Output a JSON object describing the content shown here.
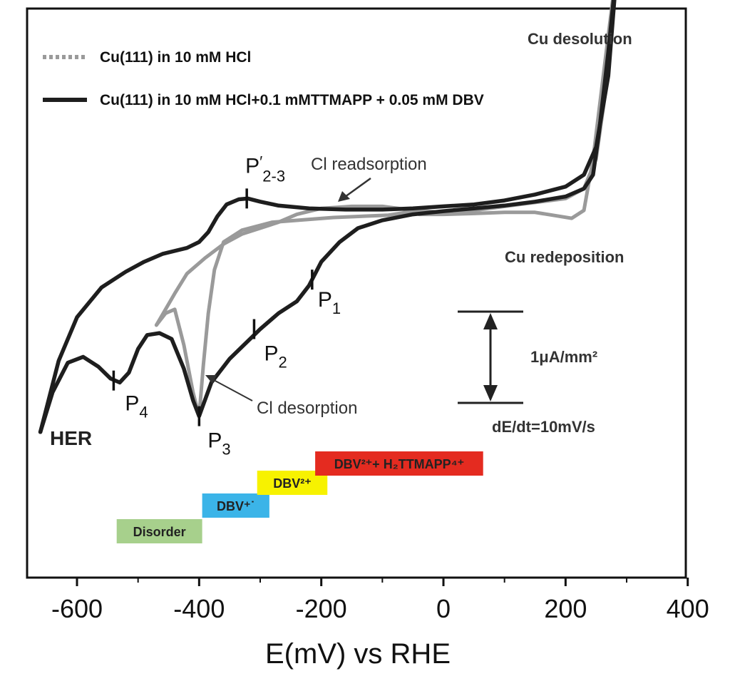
{
  "chart_data": {
    "type": "line",
    "title": "",
    "xlabel": "E(mV) vs RHE",
    "ylabel": "",
    "xlim": [
      -700,
      400
    ],
    "xticks": [
      "-600",
      "-400",
      "-200",
      "0",
      "200",
      "400"
    ],
    "xtick_values": [
      -600,
      -400,
      -200,
      0,
      200,
      400
    ],
    "grid": false,
    "legend_position": "top-left",
    "series": [
      {
        "name": "Cu(111) in 10 mM HCl",
        "style": "dotted",
        "color": "#9a9a9a",
        "anodic": [
          [
            -470,
            -2.9
          ],
          [
            -440,
            -2.1
          ],
          [
            -420,
            -1.6
          ],
          [
            -390,
            -1.2
          ],
          [
            -360,
            -0.85
          ],
          [
            -330,
            -0.6
          ],
          [
            -300,
            -0.45
          ],
          [
            -270,
            -0.3
          ],
          [
            -240,
            -0.1
          ],
          [
            -200,
            0.05
          ],
          [
            -150,
            0.1
          ],
          [
            -100,
            0.1
          ],
          [
            -50,
            0.0
          ],
          [
            0,
            -0.05
          ],
          [
            50,
            0.0
          ],
          [
            100,
            0.1
          ],
          [
            150,
            0.2
          ],
          [
            200,
            0.3
          ],
          [
            230,
            0.55
          ],
          [
            250,
            1.3
          ],
          [
            270,
            3.5
          ],
          [
            285,
            6.3
          ]
        ],
        "cathodic": [
          [
            285,
            6.3
          ],
          [
            265,
            3.8
          ],
          [
            245,
            1.3
          ],
          [
            230,
            0.0
          ],
          [
            210,
            -0.2
          ],
          [
            190,
            -0.15
          ],
          [
            150,
            -0.05
          ],
          [
            100,
            -0.05
          ],
          [
            50,
            -0.08
          ],
          [
            0,
            -0.1
          ],
          [
            -40,
            -0.1
          ],
          [
            -40,
            0.0
          ],
          [
            -90,
            -0.12
          ],
          [
            -180,
            -0.18
          ],
          [
            -280,
            -0.3
          ],
          [
            -330,
            -0.5
          ],
          [
            -360,
            -0.8
          ],
          [
            -375,
            -1.5
          ],
          [
            -385,
            -2.6
          ],
          [
            -393,
            -3.9
          ],
          [
            -400,
            -5.2
          ],
          [
            -410,
            -4.6
          ],
          [
            -425,
            -3.4
          ],
          [
            -440,
            -2.5
          ],
          [
            -455,
            -2.6
          ],
          [
            -470,
            -2.9
          ]
        ]
      },
      {
        "name": "Cu(111) in 10 mM HCl+0.1 mMTTMAPP + 0.05 mM DBV",
        "style": "solid",
        "color": "#1e1e1e",
        "anodic": [
          [
            -660,
            -5.6
          ],
          [
            -630,
            -3.8
          ],
          [
            -600,
            -2.7
          ],
          [
            -560,
            -1.95
          ],
          [
            -520,
            -1.55
          ],
          [
            -490,
            -1.3
          ],
          [
            -460,
            -1.1
          ],
          [
            -420,
            -0.95
          ],
          [
            -400,
            -0.8
          ],
          [
            -385,
            -0.55
          ],
          [
            -370,
            -0.15
          ],
          [
            -355,
            0.15
          ],
          [
            -335,
            0.28
          ],
          [
            -320,
            0.3
          ],
          [
            -300,
            0.22
          ],
          [
            -270,
            0.12
          ],
          [
            -220,
            0.05
          ],
          [
            -160,
            0.02
          ],
          [
            -100,
            0.02
          ],
          [
            -50,
            0.05
          ],
          [
            0,
            0.1
          ],
          [
            50,
            0.15
          ],
          [
            100,
            0.25
          ],
          [
            150,
            0.4
          ],
          [
            200,
            0.6
          ],
          [
            230,
            0.9
          ],
          [
            250,
            1.6
          ],
          [
            270,
            3.4
          ],
          [
            285,
            6.3
          ]
        ],
        "cathodic": [
          [
            285,
            6.3
          ],
          [
            270,
            4.0
          ],
          [
            255,
            2.0
          ],
          [
            245,
            0.9
          ],
          [
            230,
            0.55
          ],
          [
            200,
            0.35
          ],
          [
            150,
            0.22
          ],
          [
            100,
            0.12
          ],
          [
            50,
            0.05
          ],
          [
            0,
            -0.02
          ],
          [
            -50,
            -0.1
          ],
          [
            -100,
            -0.25
          ],
          [
            -140,
            -0.45
          ],
          [
            -170,
            -0.8
          ],
          [
            -200,
            -1.3
          ],
          [
            -220,
            -1.9
          ],
          [
            -240,
            -2.3
          ],
          [
            -270,
            -2.6
          ],
          [
            -300,
            -3.0
          ],
          [
            -320,
            -3.3
          ],
          [
            -350,
            -3.75
          ],
          [
            -380,
            -4.35
          ],
          [
            -400,
            -5.2
          ],
          [
            -410,
            -4.8
          ],
          [
            -425,
            -4.0
          ],
          [
            -445,
            -3.25
          ],
          [
            -465,
            -3.1
          ],
          [
            -485,
            -3.15
          ],
          [
            -500,
            -3.5
          ],
          [
            -515,
            -4.1
          ],
          [
            -530,
            -4.35
          ],
          [
            -545,
            -4.25
          ],
          [
            -565,
            -3.95
          ],
          [
            -590,
            -3.7
          ],
          [
            -615,
            -3.85
          ],
          [
            -640,
            -4.6
          ],
          [
            -660,
            -5.6
          ]
        ]
      }
    ],
    "peak_labels": [
      {
        "id": "P1",
        "main": "P",
        "sub": "1",
        "x": -215,
        "y": -1.75
      },
      {
        "id": "P2",
        "main": "P",
        "sub": "2",
        "x": -310,
        "y": -3.0
      },
      {
        "id": "P3",
        "main": "P",
        "sub": "3",
        "x": -400,
        "y": -5.2
      },
      {
        "id": "P4",
        "main": "P",
        "sub": "4",
        "x": -540,
        "y": -4.3
      },
      {
        "id": "P23",
        "main": "P",
        "prime": "′",
        "sub": "2-3",
        "x": -322,
        "y": 0.3
      }
    ],
    "annotations": {
      "cu_desolution": "Cu desolution",
      "cu_redeposition": "Cu redeposition",
      "cl_readsorption": "Cl readsorption",
      "cl_desorption": "Cl desorption",
      "her": "HER",
      "scale_bar": "1μA/mm²",
      "scan_rate": "dE/dt=10mV/s"
    },
    "phases": [
      {
        "id": "disorder",
        "label": "Disorder",
        "x_start": -535,
        "x_end": -395,
        "color": "#a7d08c"
      },
      {
        "id": "dbv-radical",
        "label": "DBV⁺˙",
        "x_start": -395,
        "x_end": -285,
        "color": "#3bb4e8"
      },
      {
        "id": "dbv-2plus",
        "label": "DBV²⁺",
        "x_start": -305,
        "x_end": -190,
        "color": "#f7f200"
      },
      {
        "id": "dbv-tmapp",
        "label": "DBV²⁺+ H₂TTMAPP⁴⁺",
        "x_start": -210,
        "x_end": 65,
        "color": "#e42b20"
      }
    ]
  }
}
